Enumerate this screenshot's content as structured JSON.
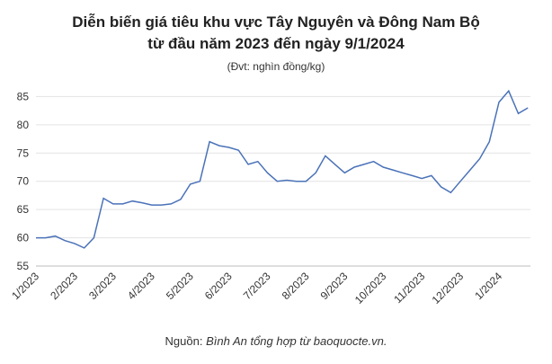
{
  "chart_data": {
    "type": "line",
    "title": "Diễn biến giá tiêu khu vực Tây Nguyên và Đông Nam Bộ",
    "title_line2": "từ đầu năm 2023 đến ngày 9/1/2024",
    "subtitle": "(Đvt: nghìn đồng/kg)",
    "source_prefix": "Nguồn: ",
    "source_text": "Bình An tổng hợp từ baoquocte.vn.",
    "categories": [
      "1/2023",
      null,
      null,
      null,
      "2/2023",
      null,
      null,
      null,
      "3/2023",
      null,
      null,
      null,
      "4/2023",
      null,
      null,
      null,
      "5/2023",
      null,
      null,
      null,
      "6/2023",
      null,
      null,
      null,
      "7/2023",
      null,
      null,
      null,
      "8/2023",
      null,
      null,
      null,
      "9/2023",
      null,
      null,
      null,
      "10/2023",
      null,
      null,
      null,
      "11/2023",
      null,
      null,
      null,
      "12/2023",
      null,
      null,
      null,
      "1/2024",
      null,
      null,
      null
    ],
    "series": [
      {
        "color": "#4a72b8",
        "values": [
          60,
          60,
          60.3,
          59.5,
          59,
          58.2,
          60,
          67,
          66,
          66,
          66.5,
          66.2,
          65.8,
          65.8,
          66,
          66.8,
          69.5,
          70,
          77,
          76.3,
          76,
          75.5,
          73,
          73.5,
          71.5,
          70,
          70.2,
          70,
          70,
          71.5,
          74.5,
          73,
          71.5,
          72.5,
          73,
          73.5,
          72.5,
          72,
          71.5,
          71,
          70.5,
          71,
          69,
          68,
          70,
          72,
          74,
          77,
          84,
          86,
          82,
          83
        ]
      }
    ],
    "ylim": [
      55,
      86.5
    ],
    "yticks": [
      55,
      60,
      65,
      70,
      75,
      80,
      85
    ],
    "grid": true
  }
}
